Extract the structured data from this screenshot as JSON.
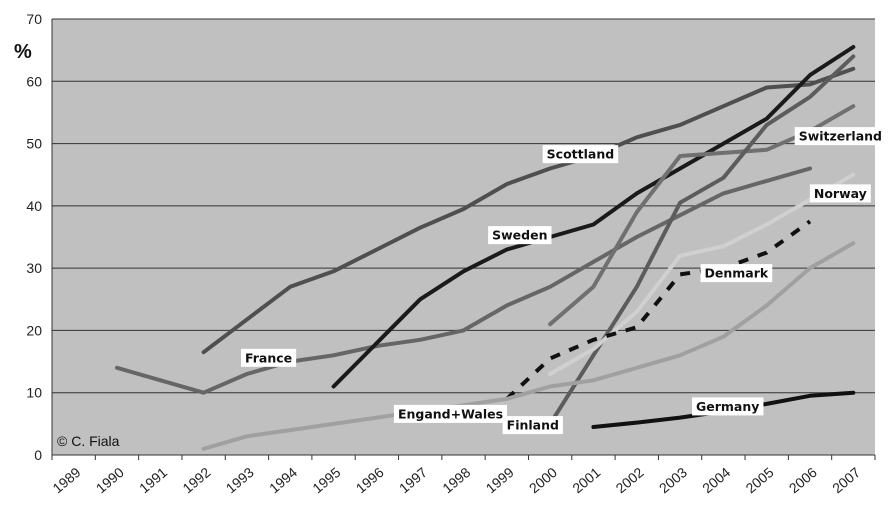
{
  "chart_data": {
    "type": "line",
    "ylabel": "%",
    "ylim": [
      0,
      70
    ],
    "yticks": [
      "0",
      "10",
      "20",
      "30",
      "40",
      "50",
      "60",
      "70"
    ],
    "x_categories": [
      "1989",
      "1990",
      "1991",
      "1992",
      "1993",
      "1994",
      "1995",
      "1996",
      "1997",
      "1998",
      "1999",
      "2000",
      "2001",
      "2002",
      "2003",
      "2004",
      "2005",
      "2006",
      "2007"
    ],
    "grid": true,
    "credit": "© C. Fiala",
    "series": [
      {
        "name": "Scottland",
        "color": "#4f4f4f",
        "dashed": false,
        "points": [
          [
            1992.5,
            16.5
          ],
          [
            1994.5,
            27
          ],
          [
            1995.5,
            29.5
          ],
          [
            1997.5,
            36.5
          ],
          [
            1998.5,
            39.5
          ],
          [
            1999.5,
            43.5
          ],
          [
            2000.5,
            46
          ],
          [
            2001.5,
            48
          ],
          [
            2002.5,
            51
          ],
          [
            2003.5,
            53
          ],
          [
            2004.5,
            56
          ],
          [
            2005.5,
            59
          ],
          [
            2006.5,
            59.5
          ],
          [
            2007.5,
            62
          ]
        ]
      },
      {
        "name": "France",
        "color": "#666666",
        "dashed": false,
        "points": [
          [
            1990.5,
            14
          ],
          [
            1992.5,
            10
          ],
          [
            1993.5,
            13
          ],
          [
            1994.5,
            15
          ],
          [
            1995.5,
            16
          ],
          [
            1996.5,
            17.5
          ],
          [
            1997.5,
            18.5
          ],
          [
            1998.5,
            20
          ],
          [
            1999.5,
            24
          ],
          [
            2000.5,
            27
          ],
          [
            2001.5,
            31
          ],
          [
            2002.5,
            35
          ],
          [
            2003.5,
            38.5
          ],
          [
            2004.5,
            42
          ],
          [
            2005.5,
            44
          ],
          [
            2006.5,
            46
          ]
        ]
      },
      {
        "name": "Sweden",
        "color": "#1a1a1a",
        "dashed": false,
        "points": [
          [
            1995.5,
            11
          ],
          [
            1996.5,
            18
          ],
          [
            1997.5,
            25
          ],
          [
            1998.5,
            29.5
          ],
          [
            1999.5,
            33
          ],
          [
            2000.5,
            35
          ],
          [
            2001.5,
            37
          ],
          [
            2002.5,
            42
          ],
          [
            2003.5,
            46
          ],
          [
            2004.5,
            50
          ],
          [
            2005.5,
            54
          ],
          [
            2006.5,
            61
          ],
          [
            2007.5,
            65.5
          ]
        ]
      },
      {
        "name": "Switzerland",
        "color": "#707070",
        "dashed": false,
        "points": [
          [
            2000.5,
            21
          ],
          [
            2001.5,
            27
          ],
          [
            2002.5,
            39
          ],
          [
            2003.5,
            48
          ],
          [
            2004.5,
            48.5
          ],
          [
            2005.5,
            49
          ],
          [
            2006.5,
            52
          ],
          [
            2007.5,
            56
          ]
        ]
      },
      {
        "name": "Finland",
        "color": "#5c5c5c",
        "dashed": false,
        "points": [
          [
            2000.5,
            5
          ],
          [
            2001.5,
            16
          ],
          [
            2002.5,
            27
          ],
          [
            2003.5,
            40.5
          ],
          [
            2004.5,
            44.5
          ],
          [
            2005.5,
            53
          ],
          [
            2006.5,
            57.5
          ],
          [
            2007.5,
            64
          ]
        ]
      },
      {
        "name": "Norway",
        "color": "#d0d0d0",
        "dashed": false,
        "points": [
          [
            2000.5,
            13
          ],
          [
            2001.5,
            17
          ],
          [
            2002.5,
            23
          ],
          [
            2003.5,
            32
          ],
          [
            2004.5,
            33.5
          ],
          [
            2005.5,
            37
          ],
          [
            2006.5,
            41
          ],
          [
            2007.5,
            45
          ]
        ]
      },
      {
        "name": "Denmark",
        "color": "#111111",
        "dashed": true,
        "points": [
          [
            1999.5,
            9
          ],
          [
            2000.5,
            15.5
          ],
          [
            2001.5,
            18.5
          ],
          [
            2002.5,
            20.5
          ],
          [
            2003.5,
            29
          ],
          [
            2004.5,
            30
          ],
          [
            2005.5,
            32.5
          ],
          [
            2006.5,
            37.5
          ]
        ]
      },
      {
        "name": "Engand+Wales",
        "color": "#a0a0a0",
        "dashed": false,
        "points": [
          [
            1992.5,
            1
          ],
          [
            1993.5,
            3
          ],
          [
            1994.5,
            4
          ],
          [
            1995.5,
            5
          ],
          [
            1996.5,
            6
          ],
          [
            1997.5,
            7
          ],
          [
            1998.5,
            8
          ],
          [
            1999.5,
            9
          ],
          [
            2000.5,
            11
          ],
          [
            2001.5,
            12
          ],
          [
            2002.5,
            14
          ],
          [
            2003.5,
            16
          ],
          [
            2004.5,
            19
          ],
          [
            2005.5,
            24
          ],
          [
            2006.5,
            30
          ],
          [
            2007.5,
            34
          ]
        ]
      },
      {
        "name": "Germany",
        "color": "#111111",
        "dashed": false,
        "points": [
          [
            2001.5,
            4.5
          ],
          [
            2002.5,
            5.2
          ],
          [
            2003.5,
            6
          ],
          [
            2004.5,
            7
          ],
          [
            2005.5,
            8.2
          ],
          [
            2006.5,
            9.5
          ],
          [
            2007.5,
            10
          ]
        ]
      }
    ],
    "labels": [
      {
        "text": "Scottland",
        "x": 2001.2,
        "y": 48.3
      },
      {
        "text": "Switzerland",
        "x": 2007.2,
        "y": 51.2
      },
      {
        "text": "Norway",
        "x": 2007.2,
        "y": 42
      },
      {
        "text": "Sweden",
        "x": 1999.8,
        "y": 35.3
      },
      {
        "text": "Denmark",
        "x": 2004.8,
        "y": 29.2
      },
      {
        "text": "France",
        "x": 1994.0,
        "y": 15.6
      },
      {
        "text": "Engand+Wales",
        "x": 1998.2,
        "y": 6.6
      },
      {
        "text": "Germany",
        "x": 2004.6,
        "y": 7.8
      },
      {
        "text": "Finland",
        "x": 2000.1,
        "y": 4.8
      }
    ]
  }
}
